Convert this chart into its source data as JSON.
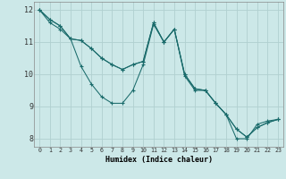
{
  "xlabel": "Humidex (Indice chaleur)",
  "bg_color": "#cce8e8",
  "grid_color": "#b0d0d0",
  "line_color": "#1a6b6b",
  "xlim": [
    -0.5,
    23.5
  ],
  "ylim": [
    7.75,
    12.25
  ],
  "xticks": [
    0,
    1,
    2,
    3,
    4,
    5,
    6,
    7,
    8,
    9,
    10,
    11,
    12,
    13,
    14,
    15,
    16,
    17,
    18,
    19,
    20,
    21,
    22,
    23
  ],
  "yticks": [
    8,
    9,
    10,
    11,
    12
  ],
  "series": [
    [
      12.0,
      11.7,
      11.5,
      11.1,
      11.05,
      10.8,
      10.5,
      10.3,
      10.15,
      10.3,
      10.4,
      11.6,
      11.0,
      11.4,
      10.0,
      9.55,
      9.5,
      9.1,
      8.75,
      8.3,
      8.05,
      8.35,
      8.5,
      8.6
    ],
    [
      12.0,
      11.7,
      11.5,
      11.1,
      11.05,
      10.8,
      10.5,
      10.3,
      10.15,
      10.3,
      10.4,
      11.6,
      11.0,
      11.4,
      10.0,
      9.55,
      9.5,
      9.1,
      8.75,
      8.3,
      8.05,
      8.35,
      8.5,
      8.6
    ],
    [
      12.0,
      11.6,
      11.4,
      11.1,
      10.25,
      9.7,
      9.3,
      9.1,
      9.1,
      9.5,
      10.3,
      11.55,
      11.0,
      11.4,
      9.95,
      9.5,
      9.5,
      9.1,
      8.75,
      8.0,
      8.0,
      8.45,
      8.55,
      8.6
    ]
  ]
}
